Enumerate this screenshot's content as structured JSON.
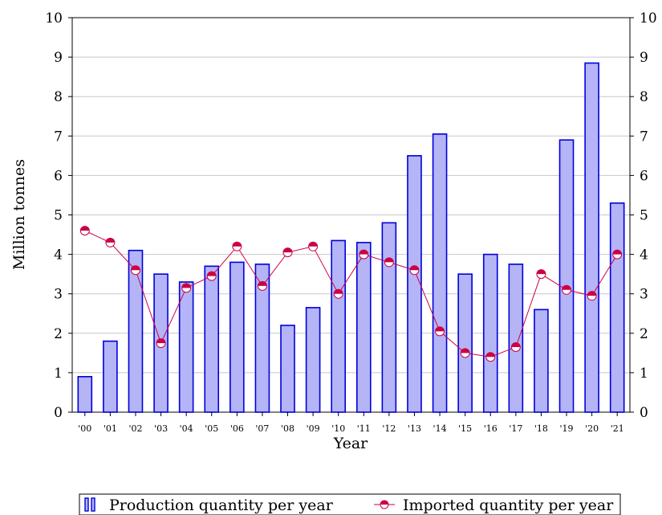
{
  "chart_data": {
    "type": "bar",
    "title": "",
    "xlabel": "Year",
    "ylabel": "Million tonnes",
    "ylim": [
      0,
      10
    ],
    "yticks": [
      0,
      1,
      2,
      3,
      4,
      5,
      6,
      7,
      8,
      9,
      10
    ],
    "ytick_labels": [
      "0",
      "1",
      "2",
      "3",
      "4",
      "5",
      "6",
      "7",
      "8",
      "9",
      "10"
    ],
    "right_axis": true,
    "grid": true,
    "legend_position": "bottom",
    "categories": [
      "'00",
      "'01",
      "'02",
      "'03",
      "'04",
      "'05",
      "'06",
      "'07",
      "'08",
      "'09",
      "'10",
      "'11",
      "'12",
      "'13",
      "'14",
      "'15",
      "'16",
      "'17",
      "'18",
      "'19",
      "'20",
      "'21"
    ],
    "series": [
      {
        "name": "Production quantity per year",
        "type": "bar",
        "color": "#0000dd",
        "fill": "#b4b4f6",
        "values": [
          0.9,
          1.8,
          4.1,
          3.5,
          3.3,
          3.7,
          3.8,
          3.75,
          2.2,
          2.65,
          4.35,
          4.3,
          4.8,
          6.5,
          7.05,
          3.5,
          4.0,
          3.75,
          2.6,
          6.9,
          8.85,
          5.3
        ]
      },
      {
        "name": "Imported quantity per year",
        "type": "line",
        "color": "#cc0044",
        "values": [
          4.6,
          4.3,
          3.6,
          1.75,
          3.15,
          3.45,
          4.2,
          3.2,
          4.05,
          4.2,
          3.0,
          4.0,
          3.8,
          3.6,
          2.05,
          1.5,
          1.4,
          1.65,
          3.5,
          3.1,
          2.95,
          4.0
        ]
      }
    ]
  }
}
